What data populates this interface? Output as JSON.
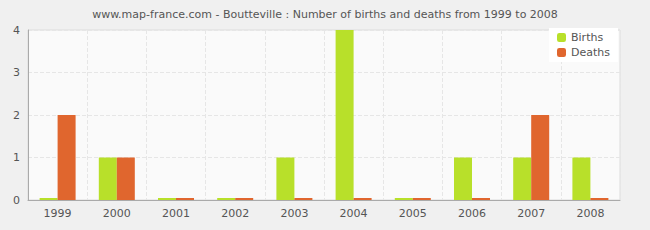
{
  "chart_data": {
    "type": "bar",
    "title": "www.map-france.com - Boutteville : Number of births and deaths from 1999 to 2008",
    "categories": [
      "1999",
      "2000",
      "2001",
      "2002",
      "2003",
      "2004",
      "2005",
      "2006",
      "2007",
      "2008"
    ],
    "series": [
      {
        "name": "Births",
        "color": "#b8e02a",
        "values": [
          0,
          1,
          0,
          0,
          1,
          4,
          0,
          1,
          1,
          1
        ]
      },
      {
        "name": "Deaths",
        "color": "#e0662e",
        "values": [
          2,
          1,
          0,
          0,
          0,
          0,
          0,
          0,
          2,
          0
        ]
      }
    ],
    "ylim": [
      0,
      4
    ],
    "yticks": [
      0,
      1,
      2,
      3,
      4
    ],
    "grid": true,
    "legend": "top-right"
  }
}
